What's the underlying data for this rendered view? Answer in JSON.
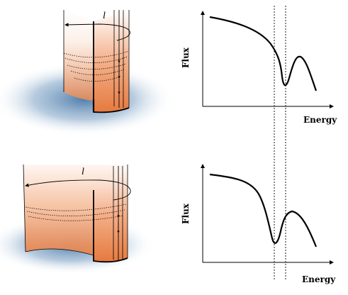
{
  "panels": [
    {
      "ylabel": "Flux",
      "xlabel": "Energy",
      "length_label": "l"
    },
    {
      "ylabel": "Flux",
      "xlabel": "Energy",
      "length_label": "l"
    }
  ],
  "colors": {
    "tube_orange": "#e8864e",
    "tube_light": "#fbe6da",
    "glow_blue": "#4a79a8",
    "line": "#000000"
  }
}
